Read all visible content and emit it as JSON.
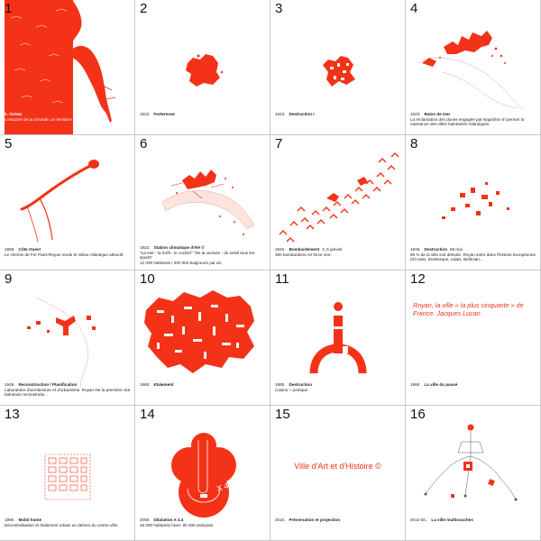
{
  "accent_color": "#f43218",
  "panels": [
    {
      "number": "1",
      "year": "",
      "title": "0. Océan",
      "extra": "",
      "description": "L'estuaire de la Gironde, un territoire de conquêtes."
    },
    {
      "number": "2",
      "year": "1622.",
      "title": "Forteresse",
      "extra": "",
      "description": ""
    },
    {
      "number": "3",
      "year": "1623.",
      "title": "Destruction I",
      "extra": "",
      "description": ""
    },
    {
      "number": "4",
      "year": "1823.",
      "title": "Bains de mer",
      "extra": "",
      "description": "La réclamation des dunes engagée par Napoléon III permet la naissance des villes balnéaires Atlantiques."
    },
    {
      "number": "5",
      "year": "1888.",
      "title": "Côte Ouest",
      "extra": "",
      "description": "Le chemin de Fer Paris-Royan rende le milieu Atlantique attractif."
    },
    {
      "number": "6",
      "year": "1922.",
      "title": "Station climatique d'été ©",
      "extra": "",
      "description": "\"La mer - la forêt - le confort\" \"De la verdure - du soleil tous les sports\"",
      "description2": "12 000 habitants / 200 000 baigneurs par an."
    },
    {
      "number": "7",
      "year": "1945.",
      "title": "Bombardement",
      "extra": "4, 5 janvier",
      "description": "300 bombardiers Air force one."
    },
    {
      "number": "8",
      "year": "1945.",
      "title": "Destruction",
      "extra": "85 mai",
      "description": "85 % de la ville soit détruite. Royan entre dans l'histoire Européenne (St malo, Dunkerque, calais, Berlinian..."
    },
    {
      "number": "9",
      "year": "1948.",
      "title": "Reconstruction / Planification",
      "extra": "",
      "description": "Laboratoire d'architecture et d'urbanisme. Royan est la première cité balnéaire reconstruite..."
    },
    {
      "number": "10",
      "year": "1960.",
      "title": "Etalement",
      "extra": "",
      "description": ""
    },
    {
      "number": "11",
      "year": "1985.",
      "title": "Destruction",
      "extra": "",
      "description": "Casino + portique"
    },
    {
      "number": "12",
      "year": "1986.",
      "title": "La ville du passé",
      "extra": "",
      "description": "",
      "quote": "Royan, la ville « la plus cinquante » de France. Jacques Lucan"
    },
    {
      "number": "13",
      "year": "1990.",
      "title": "Mobil home",
      "extra": "",
      "description": "Décentralisation et étalement urbain en dehors du centre-ville."
    },
    {
      "number": "14",
      "year": "2000.",
      "title": "Dilatation X 4.4",
      "extra": "",
      "description": "18 000 habitants hiver. 80 000 estivants.",
      "mark": "X 4.4"
    },
    {
      "number": "15",
      "year": "2010.",
      "title": "Préservation et projection",
      "extra": "",
      "description": "",
      "big": "Ville d'Art et d'Histoire ©"
    },
    {
      "number": "16",
      "year": "2012-20..",
      "title": "La ville multicouches",
      "extra": "",
      "description": ""
    }
  ]
}
